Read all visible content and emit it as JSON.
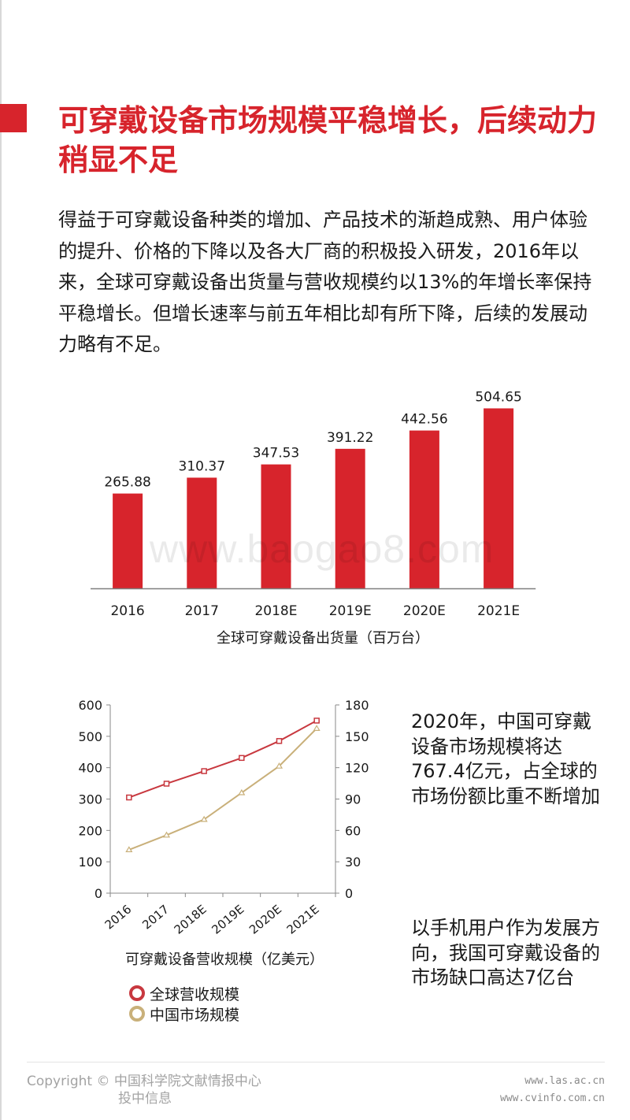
{
  "title": "可穿戴设备市场规模平稳增长，后续动力稍显不足",
  "intro": "得益于可穿戴设备种类的增加、产品技术的渐趋成熟、用户体验的提升、价格的下降以及各大厂商的积极投入研发，2016年以来，全球可穿戴设备出货量与营收规模约以13%的年增长率保持平稳增长。但增长速率与前五年相比却有所下降，后续的发展动力略有不足。",
  "watermark": "www.baogao8.com",
  "chart_data": [
    {
      "type": "bar",
      "categories": [
        "2016",
        "2017",
        "2018E",
        "2019E",
        "2020E",
        "2021E"
      ],
      "values": [
        265.88,
        310.37,
        347.53,
        391.22,
        442.56,
        504.65
      ],
      "value_labels": [
        "265.88",
        "310.37",
        "347.53",
        "391.22",
        "442.56",
        "504.65"
      ],
      "xlabel": "全球可穿戴设备出货量（百万台）",
      "ylim": [
        0,
        530
      ],
      "color": "#d7242c",
      "grid": false
    },
    {
      "type": "line",
      "categories": [
        "2016",
        "2017",
        "2018E",
        "2019E",
        "2020E",
        "2021E"
      ],
      "xlabel": "可穿戴设备营收规模（亿美元）",
      "y_left": {
        "range": [
          0,
          600
        ],
        "ticks": [
          "0",
          "100",
          "200",
          "300",
          "400",
          "500",
          "600"
        ]
      },
      "y_right": {
        "range": [
          0,
          180
        ],
        "ticks": [
          "0",
          "30",
          "60",
          "90",
          "120",
          "150",
          "180"
        ]
      },
      "series": [
        {
          "name": "全球营收规模",
          "axis": "left",
          "values": [
            305,
            349,
            389,
            431,
            485,
            550
          ],
          "color": "#c8383f",
          "marker": "square"
        },
        {
          "name": "中国市场规模",
          "axis": "right",
          "values": [
            41.5,
            55.5,
            70.5,
            96,
            121.5,
            157.5
          ],
          "color": "#c9b07a",
          "marker": "triangle"
        }
      ],
      "legend": "bottom",
      "grid": false
    }
  ],
  "notes": [
    "2020年，中国可穿戴设备市场规模将达767.4亿元，占全球的市场份额比重不断增加",
    "以手机用户作为发展方向，我国可穿戴设备的市场缺口高达7亿台"
  ],
  "footer": {
    "copyright_line1": "Copyright © 中国科学院文献情报中心",
    "copyright_line2": "投中信息",
    "site1": "www.las.ac.cn",
    "site2": "www.cvinfo.com.cn"
  }
}
